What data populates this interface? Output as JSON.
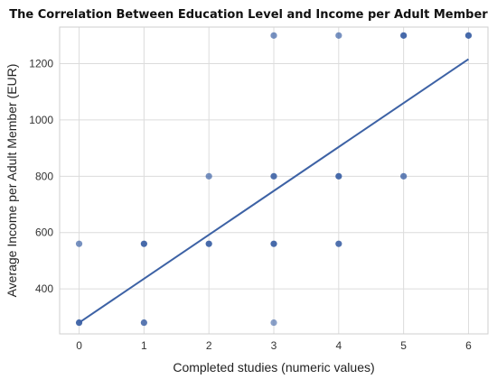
{
  "chart_data": {
    "type": "scatter",
    "title": "The Correlation Between Education Level and Income per Adult Member",
    "xlabel": "Completed studies (numeric values)",
    "ylabel": "Average Income per Adult Member (EUR)",
    "xlim": [
      -0.3,
      6.3
    ],
    "ylim": [
      240,
      1330
    ],
    "x_ticks": [
      "0",
      "1",
      "2",
      "3",
      "4",
      "5",
      "6"
    ],
    "y_ticks": [
      "400",
      "600",
      "800",
      "1000",
      "1200"
    ],
    "grid": true,
    "points": [
      {
        "x": 0,
        "y": 560,
        "opacity": 0.7
      },
      {
        "x": 0,
        "y": 280,
        "opacity": 0.95
      },
      {
        "x": 1,
        "y": 560,
        "opacity": 0.95
      },
      {
        "x": 1,
        "y": 280,
        "opacity": 0.85
      },
      {
        "x": 2,
        "y": 800,
        "opacity": 0.7
      },
      {
        "x": 2,
        "y": 560,
        "opacity": 0.95
      },
      {
        "x": 3,
        "y": 1300,
        "opacity": 0.7
      },
      {
        "x": 3,
        "y": 800,
        "opacity": 0.9
      },
      {
        "x": 3,
        "y": 560,
        "opacity": 0.95
      },
      {
        "x": 3,
        "y": 280,
        "opacity": 0.6
      },
      {
        "x": 4,
        "y": 1300,
        "opacity": 0.7
      },
      {
        "x": 4,
        "y": 800,
        "opacity": 0.95
      },
      {
        "x": 4,
        "y": 560,
        "opacity": 0.9
      },
      {
        "x": 5,
        "y": 1300,
        "opacity": 0.95
      },
      {
        "x": 5,
        "y": 800,
        "opacity": 0.8
      },
      {
        "x": 6,
        "y": 1300,
        "opacity": 0.95
      }
    ],
    "trendline": {
      "x": [
        0,
        6
      ],
      "y": [
        280,
        1216
      ]
    },
    "colors": {
      "point": "#3d62a5",
      "trend": "#3d62a5"
    }
  }
}
